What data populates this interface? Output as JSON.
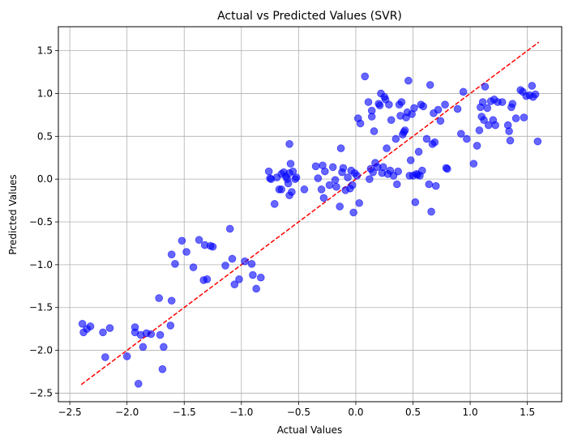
{
  "chart_data": {
    "type": "scatter",
    "title": "Actual vs Predicted Values (SVR)",
    "xlabel": "Actual Values",
    "ylabel": "Predicted Values",
    "xlim": [
      -2.6,
      1.8
    ],
    "ylim": [
      -2.6,
      1.78
    ],
    "xticks": [
      -2.5,
      -2.0,
      -1.5,
      -1.0,
      -0.5,
      0.0,
      0.5,
      1.0,
      1.5
    ],
    "xtick_labels": [
      "−2.5",
      "−2.0",
      "−1.5",
      "−1.0",
      "−0.5",
      "0.0",
      "0.5",
      "1.0",
      "1.5"
    ],
    "yticks": [
      -2.5,
      -2.0,
      -1.5,
      -1.0,
      -0.5,
      0.0,
      0.5,
      1.0,
      1.5
    ],
    "ytick_labels": [
      "−2.5",
      "−2.0",
      "−1.5",
      "−1.0",
      "−0.5",
      "0.0",
      "0.5",
      "1.0",
      "1.5"
    ],
    "grid": true,
    "point_color": "#0000ff",
    "point_alpha": 0.6,
    "reference_line": {
      "x": [
        -2.4,
        1.6
      ],
      "y": [
        -2.4,
        1.6
      ],
      "color": "#ff0000",
      "style": "dashed"
    },
    "points": [
      [
        -2.39,
        -1.69
      ],
      [
        -2.38,
        -1.79
      ],
      [
        -2.35,
        -1.75
      ],
      [
        -2.32,
        -1.72
      ],
      [
        -2.21,
        -1.79
      ],
      [
        -2.19,
        -2.08
      ],
      [
        -2.15,
        -1.74
      ],
      [
        -2.0,
        -2.07
      ],
      [
        -1.93,
        -1.73
      ],
      [
        -1.93,
        -1.79
      ],
      [
        -1.9,
        -2.39
      ],
      [
        -1.88,
        -1.82
      ],
      [
        -1.86,
        -1.96
      ],
      [
        -1.83,
        -1.8
      ],
      [
        -1.79,
        -1.81
      ],
      [
        -1.72,
        -1.39
      ],
      [
        -1.71,
        -1.82
      ],
      [
        -1.69,
        -2.22
      ],
      [
        -1.68,
        -1.96
      ],
      [
        -1.62,
        -1.71
      ],
      [
        -1.61,
        -1.42
      ],
      [
        -1.61,
        -0.88
      ],
      [
        -1.58,
        -0.99
      ],
      [
        -1.52,
        -0.72
      ],
      [
        -1.48,
        -0.85
      ],
      [
        -1.42,
        -1.03
      ],
      [
        -1.37,
        -0.71
      ],
      [
        -1.33,
        -1.18
      ],
      [
        -1.32,
        -0.77
      ],
      [
        -1.3,
        -1.17
      ],
      [
        -1.27,
        -0.78
      ],
      [
        -1.25,
        -0.79
      ],
      [
        -1.14,
        -1.01
      ],
      [
        -1.1,
        -0.58
      ],
      [
        -1.08,
        -0.93
      ],
      [
        -1.06,
        -1.23
      ],
      [
        -1.02,
        -1.17
      ],
      [
        -0.97,
        -0.96
      ],
      [
        -0.91,
        -0.99
      ],
      [
        -0.9,
        -1.12
      ],
      [
        -0.87,
        -1.28
      ],
      [
        -0.83,
        -1.15
      ],
      [
        -0.76,
        0.09
      ],
      [
        -0.75,
        0.01
      ],
      [
        -0.74,
        0.0
      ],
      [
        -0.71,
        -0.29
      ],
      [
        -0.69,
        0.02
      ],
      [
        -0.67,
        -0.12
      ],
      [
        -0.65,
        0.06
      ],
      [
        -0.65,
        -0.12
      ],
      [
        -0.63,
        0.08
      ],
      [
        -0.61,
        0.03
      ],
      [
        -0.6,
        0.0
      ],
      [
        -0.59,
        -0.05
      ],
      [
        -0.58,
        0.07
      ],
      [
        -0.58,
        0.41
      ],
      [
        -0.58,
        -0.19
      ],
      [
        -0.57,
        0.18
      ],
      [
        -0.56,
        -0.15
      ],
      [
        -0.55,
        0.09
      ],
      [
        -0.53,
        0.0
      ],
      [
        -0.52,
        0.02
      ],
      [
        -0.45,
        -0.12
      ],
      [
        -0.35,
        0.15
      ],
      [
        -0.33,
        0.01
      ],
      [
        -0.3,
        -0.12
      ],
      [
        -0.29,
        0.16
      ],
      [
        -0.28,
        -0.22
      ],
      [
        -0.27,
        0.09
      ],
      [
        -0.23,
        -0.07
      ],
      [
        -0.2,
        0.14
      ],
      [
        -0.18,
        -0.01
      ],
      [
        -0.17,
        -0.09
      ],
      [
        -0.14,
        -0.32
      ],
      [
        -0.13,
        0.36
      ],
      [
        -0.12,
        0.08
      ],
      [
        -0.11,
        0.13
      ],
      [
        -0.09,
        -0.13
      ],
      [
        -0.07,
        0.02
      ],
      [
        -0.05,
        -0.11
      ],
      [
        -0.04,
        0.1
      ],
      [
        -0.03,
        -0.07
      ],
      [
        -0.02,
        -0.39
      ],
      [
        -0.01,
        0.07
      ],
      [
        0.01,
        0.04
      ],
      [
        0.02,
        0.71
      ],
      [
        0.03,
        -0.28
      ],
      [
        0.04,
        0.65
      ],
      [
        0.08,
        1.2
      ],
      [
        0.11,
        0.9
      ],
      [
        0.12,
        0.0
      ],
      [
        0.13,
        0.12
      ],
      [
        0.14,
        0.8
      ],
      [
        0.14,
        0.73
      ],
      [
        0.15,
        0.08
      ],
      [
        0.16,
        0.56
      ],
      [
        0.17,
        0.19
      ],
      [
        0.19,
        0.14
      ],
      [
        0.2,
        0.88
      ],
      [
        0.21,
        0.86
      ],
      [
        0.22,
        1.0
      ],
      [
        0.23,
        0.07
      ],
      [
        0.24,
        0.14
      ],
      [
        0.25,
        0.96
      ],
      [
        0.26,
        0.93
      ],
      [
        0.27,
        0.36
      ],
      [
        0.28,
        0.06
      ],
      [
        0.29,
        0.87
      ],
      [
        0.3,
        0.1
      ],
      [
        0.31,
        0.69
      ],
      [
        0.33,
        0.04
      ],
      [
        0.35,
        0.47
      ],
      [
        0.36,
        -0.06
      ],
      [
        0.37,
        0.09
      ],
      [
        0.38,
        0.87
      ],
      [
        0.39,
        0.74
      ],
      [
        0.4,
        0.9
      ],
      [
        0.41,
        0.52
      ],
      [
        0.42,
        0.55
      ],
      [
        0.43,
        0.57
      ],
      [
        0.44,
        0.72
      ],
      [
        0.45,
        0.78
      ],
      [
        0.46,
        1.15
      ],
      [
        0.47,
        0.04
      ],
      [
        0.48,
        0.22
      ],
      [
        0.49,
        0.76
      ],
      [
        0.5,
        0.04
      ],
      [
        0.51,
        0.83
      ],
      [
        0.52,
        -0.27
      ],
      [
        0.53,
        0.06
      ],
      [
        0.54,
        0.05
      ],
      [
        0.55,
        0.32
      ],
      [
        0.56,
        0.04
      ],
      [
        0.57,
        0.87
      ],
      [
        0.58,
        0.1
      ],
      [
        0.59,
        0.85
      ],
      [
        0.62,
        0.47
      ],
      [
        0.64,
        -0.06
      ],
      [
        0.65,
        1.1
      ],
      [
        0.66,
        -0.38
      ],
      [
        0.67,
        0.41
      ],
      [
        0.68,
        0.77
      ],
      [
        0.69,
        0.43
      ],
      [
        0.7,
        -0.08
      ],
      [
        0.72,
        0.81
      ],
      [
        0.74,
        0.68
      ],
      [
        0.78,
        0.87
      ],
      [
        0.79,
        0.13
      ],
      [
        0.8,
        0.12
      ],
      [
        0.89,
        0.82
      ],
      [
        0.92,
        0.53
      ],
      [
        0.94,
        1.02
      ],
      [
        0.97,
        0.47
      ],
      [
        1.03,
        0.18
      ],
      [
        1.06,
        0.39
      ],
      [
        1.08,
        0.57
      ],
      [
        1.09,
        0.84
      ],
      [
        1.1,
        0.73
      ],
      [
        1.11,
        0.9
      ],
      [
        1.12,
        0.69
      ],
      [
        1.13,
        1.08
      ],
      [
        1.15,
        0.83
      ],
      [
        1.16,
        0.63
      ],
      [
        1.18,
        0.91
      ],
      [
        1.2,
        0.69
      ],
      [
        1.21,
        0.93
      ],
      [
        1.22,
        0.63
      ],
      [
        1.24,
        0.9
      ],
      [
        1.28,
        0.9
      ],
      [
        1.33,
        0.63
      ],
      [
        1.34,
        0.56
      ],
      [
        1.35,
        0.45
      ],
      [
        1.36,
        0.84
      ],
      [
        1.37,
        0.88
      ],
      [
        1.4,
        0.71
      ],
      [
        1.44,
        1.04
      ],
      [
        1.46,
        1.02
      ],
      [
        1.47,
        0.72
      ],
      [
        1.49,
        0.97
      ],
      [
        1.52,
        0.98
      ],
      [
        1.54,
        1.09
      ],
      [
        1.55,
        0.96
      ],
      [
        1.57,
        0.99
      ],
      [
        1.59,
        0.44
      ]
    ]
  }
}
